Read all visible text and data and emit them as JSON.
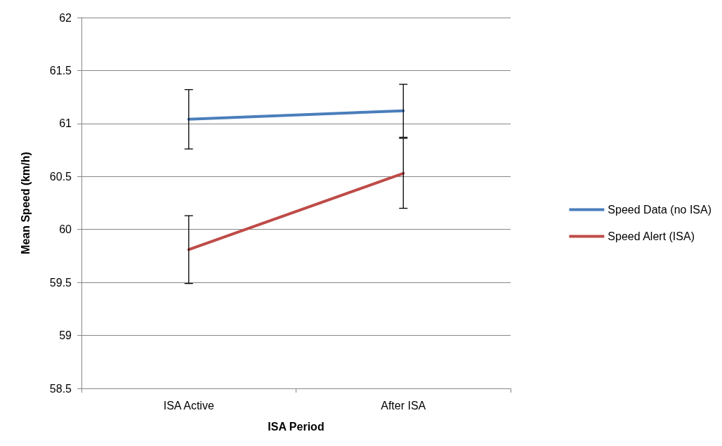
{
  "chart_data": {
    "type": "line",
    "xlabel": "ISA Period",
    "ylabel": "Mean Speed (km/h)",
    "categories": [
      "ISA Active",
      "After ISA"
    ],
    "series": [
      {
        "name": "Speed Data (no ISA)",
        "color": "#4a7ebb",
        "values": [
          61.04,
          61.12
        ],
        "errors": [
          0.28,
          0.25
        ]
      },
      {
        "name": "Speed Alert (ISA)",
        "color": "#be4b48",
        "values": [
          59.81,
          60.53
        ],
        "errors": [
          0.32,
          0.33
        ]
      }
    ],
    "ylim": [
      58.5,
      62
    ],
    "yticks": [
      58.5,
      59,
      59.5,
      60,
      60.5,
      61,
      61.5,
      62
    ],
    "grid": "y",
    "legend": "right",
    "marker": "none",
    "line_style": "solid"
  }
}
